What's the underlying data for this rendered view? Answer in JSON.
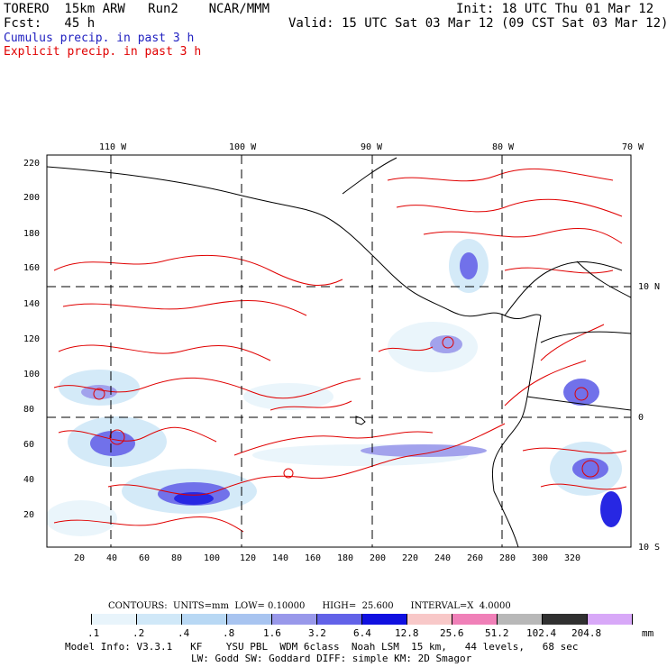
{
  "header": {
    "line1_left": "TORERO  15km ARW   Run2    NCAR/MMM",
    "line1_right": "Init: 18 UTC Thu 01 Mar 12",
    "line2_left": "Fcst:   45 h",
    "line2_right": "Valid: 15 UTC Sat 03 Mar 12 (09 CST Sat 03 Mar 12)",
    "cumulus": "Cumulus precip. in past 3 h",
    "explicit": "Explicit precip. in past 3 h"
  },
  "axes": {
    "top_lon": [
      "110 W",
      "100 W",
      "90 W",
      "80 W",
      "70 W"
    ],
    "right_lat": [
      "10 N",
      "0",
      "10 S"
    ],
    "left_y": [
      "220",
      "200",
      "180",
      "160",
      "140",
      "120",
      "100",
      "80",
      "60",
      "40",
      "20"
    ],
    "bottom_x": [
      "20",
      "40",
      "60",
      "80",
      "100",
      "120",
      "140",
      "160",
      "180",
      "200",
      "220",
      "240",
      "260",
      "280",
      "300",
      "320"
    ]
  },
  "contours": {
    "label": "CONTOURS:  UNITS=mm  LOW= 0.10000      HIGH=  25.600      INTERVAL=X  4.0000"
  },
  "colorbar": {
    "levels": [
      ".1",
      ".2",
      ".4",
      ".8",
      "1.6",
      "3.2",
      "6.4",
      "12.8",
      "25.6",
      "51.2",
      "102.4",
      "204.8"
    ],
    "units": "mm",
    "colors": [
      "#ffffff",
      "#e8f4fb",
      "#d0e8f8",
      "#b8d8f4",
      "#a8c4f0",
      "#9898ea",
      "#6262e8",
      "#1010e0",
      "#f8c8c8",
      "#f080b8",
      "#b8b8b8",
      "#303030",
      "#d8a8f8"
    ]
  },
  "footer": {
    "line1": "Model Info: V3.3.1   KF    YSU PBL  WDM 6class  Noah LSM  15 km,   44 levels,   68 sec",
    "line2": "LW: Godd SW: Goddard DIFF: simple KM: 2D Smagor"
  }
}
